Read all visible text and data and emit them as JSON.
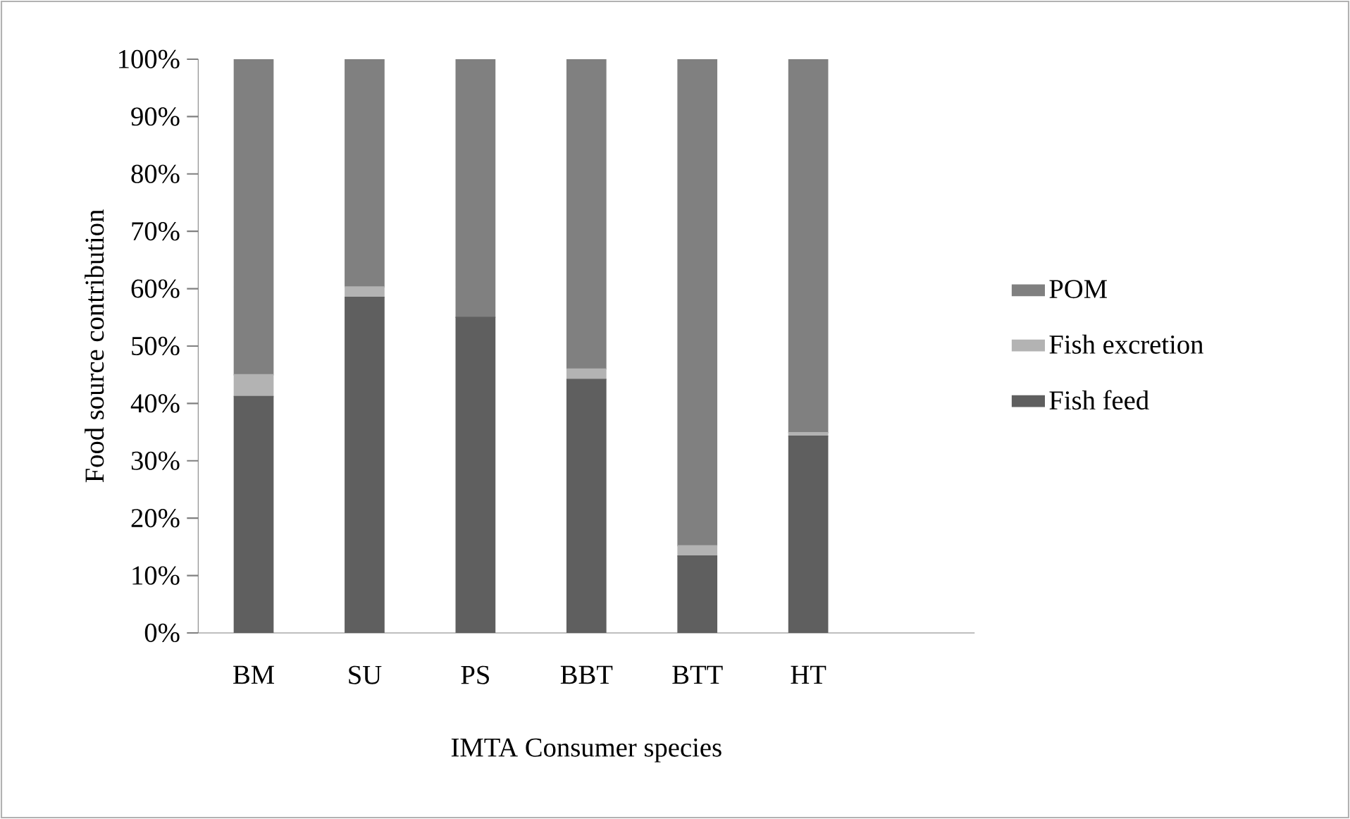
{
  "chart_data": {
    "type": "bar",
    "stacked": true,
    "xlabel": "IMTA Consumer species",
    "ylabel": "Food source contribution",
    "categories": [
      "BM",
      "SU",
      "PS",
      "BBT",
      "BTT",
      "HT",
      null
    ],
    "series": [
      {
        "name": "Fish feed",
        "color": "#5f5f5f",
        "values": [
          41.2,
          58.5,
          55,
          44.2,
          13.4,
          34.3,
          null
        ]
      },
      {
        "name": "Fish excretion",
        "color": "#b3b3b3",
        "values": [
          3.8,
          1.8,
          0,
          1.8,
          1.8,
          0.6,
          null
        ]
      },
      {
        "name": "POM",
        "color": "#808080",
        "values": [
          55,
          39.7,
          45,
          54,
          84.8,
          65.1,
          null
        ]
      }
    ],
    "ylim": [
      0,
      100
    ],
    "yticks": [
      {
        "value": 0,
        "label": "0%"
      },
      {
        "value": 10,
        "label": "10%"
      },
      {
        "value": 20,
        "label": "20%"
      },
      {
        "value": 30,
        "label": "30%"
      },
      {
        "value": 40,
        "label": "40%"
      },
      {
        "value": 50,
        "label": "50%"
      },
      {
        "value": 60,
        "label": "60%"
      },
      {
        "value": 70,
        "label": "70%"
      },
      {
        "value": 80,
        "label": "80%"
      },
      {
        "value": 90,
        "label": "90%"
      },
      {
        "value": 100,
        "label": "100%"
      }
    ],
    "grid": false,
    "legend": "right"
  }
}
